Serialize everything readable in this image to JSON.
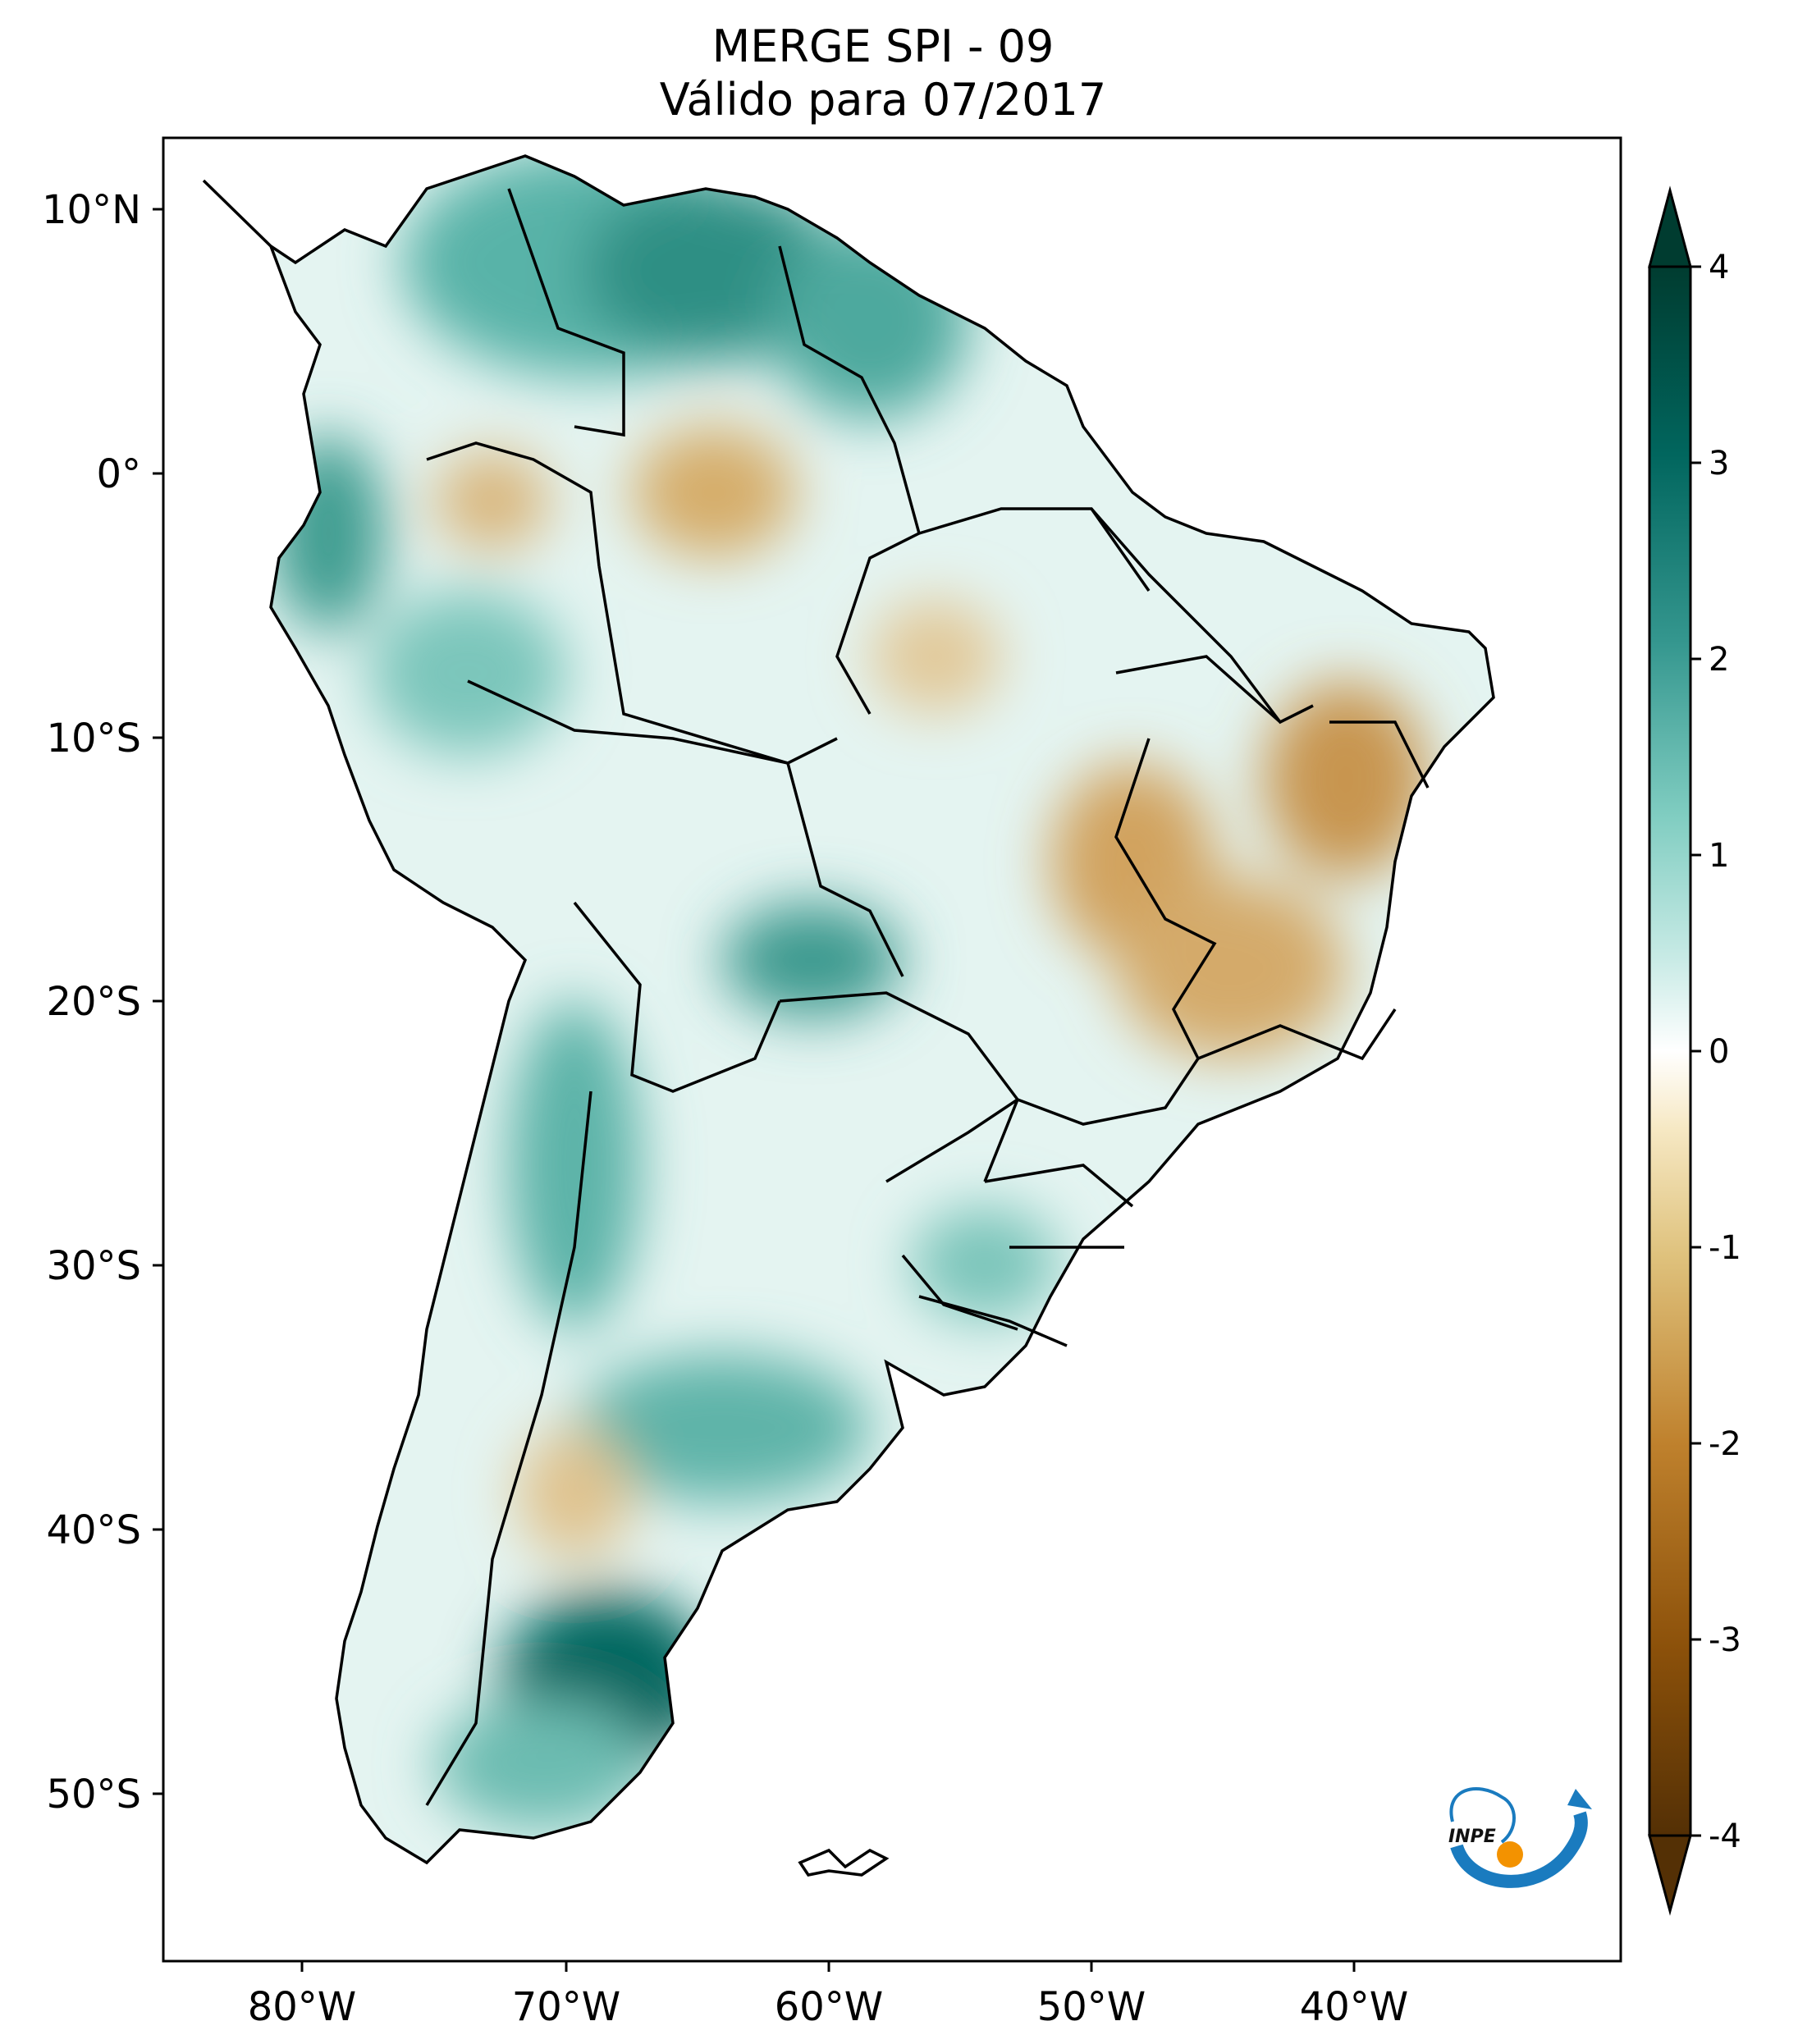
{
  "title": {
    "line1": "MERGE   SPI - 09",
    "line2": "Válido para 07/2017"
  },
  "lat_ticks": [
    "10°N",
    "0°",
    "10°S",
    "20°S",
    "30°S",
    "40°S",
    "50°S"
  ],
  "lon_ticks": [
    "80°W",
    "70°W",
    "60°W",
    "50°W",
    "40°W"
  ],
  "colorbar": {
    "min": -4,
    "max": 4,
    "labels": [
      "4",
      "3",
      "2",
      "1",
      "0",
      "-1",
      "-2",
      "-3",
      "-4"
    ],
    "colors": [
      "#543005",
      "#8c510a",
      "#bf812d",
      "#dfc27d",
      "#f6e8c3",
      "#ffffff",
      "#c7eae5",
      "#80cdc1",
      "#35978f",
      "#01665e",
      "#003c30"
    ]
  },
  "logo": {
    "text": "INPE"
  }
}
